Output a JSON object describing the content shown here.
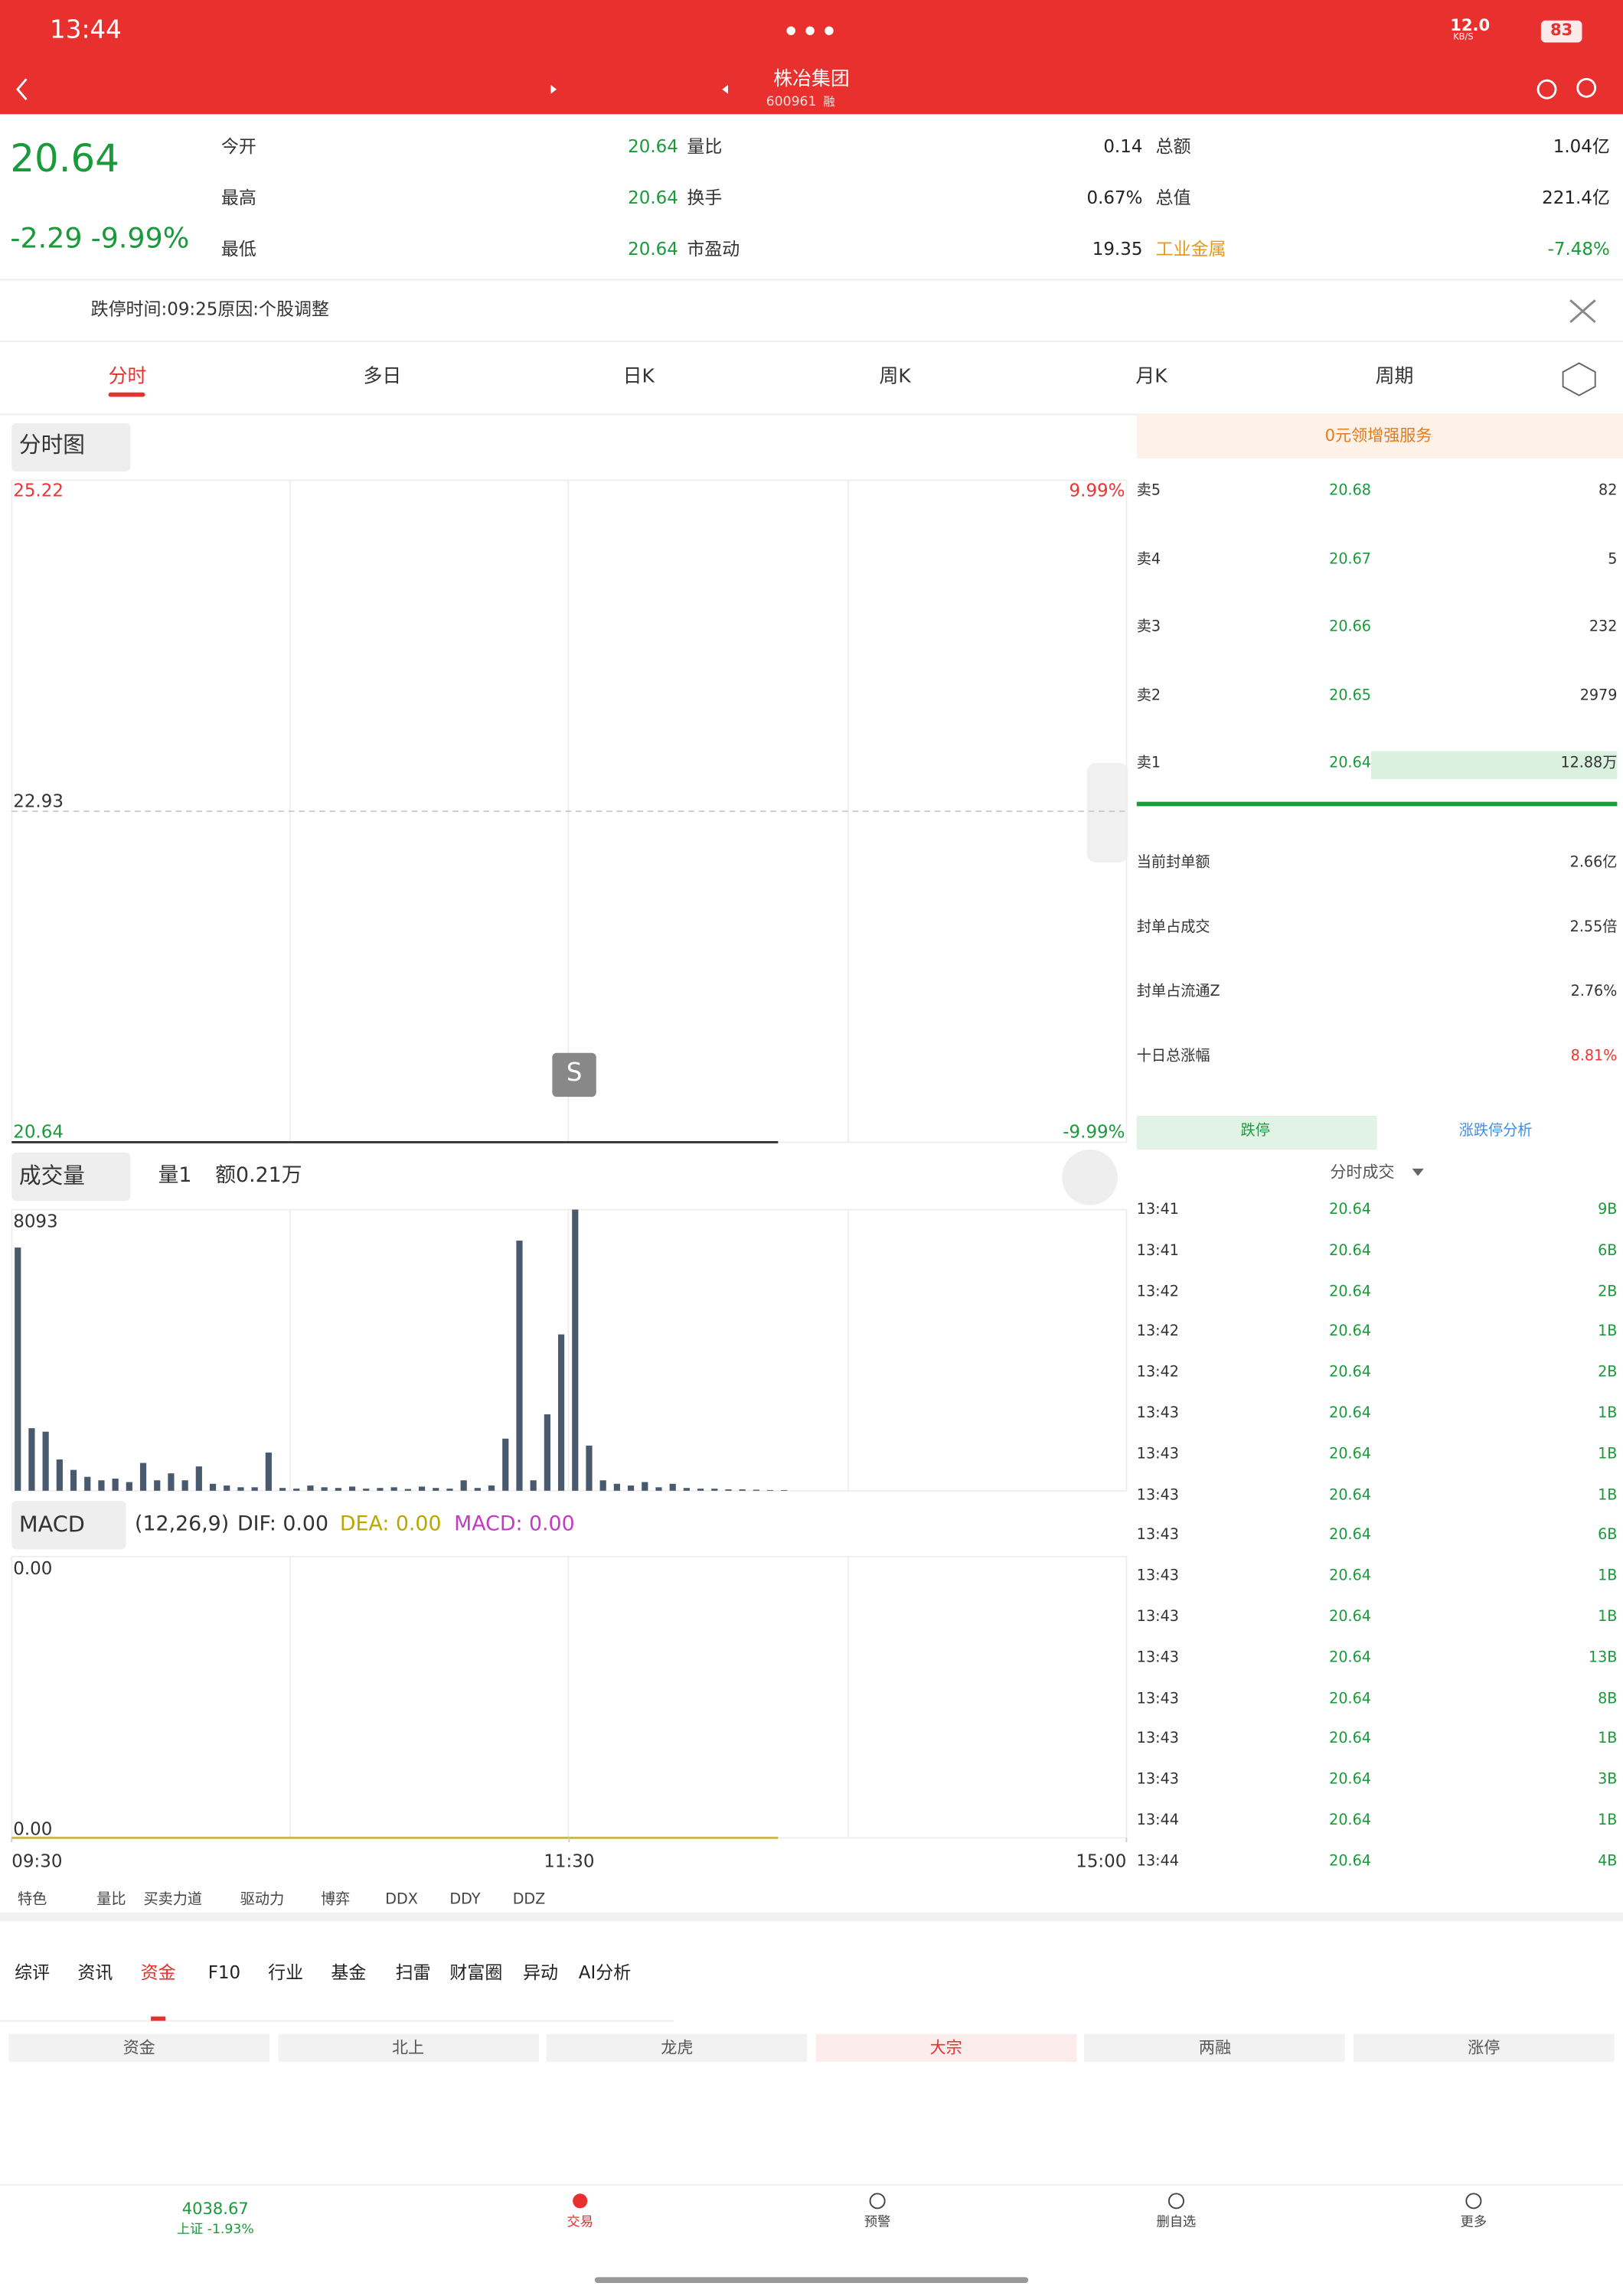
{
  "status_bar": {
    "time": "13:44",
    "speed": "12.0",
    "speed_unit": "KB/S",
    "battery": "83"
  },
  "header": {
    "title": "株冶集团",
    "code": "600961",
    "tag": "融"
  },
  "quote": {
    "price": "20.64",
    "change": "-2.29",
    "change_pct": "-9.99%",
    "rows": [
      [
        [
          "今开",
          "20.64"
        ],
        [
          "量比",
          "0.14"
        ],
        [
          "总额",
          "1.04亿"
        ]
      ],
      [
        [
          "最高",
          "20.64"
        ],
        [
          "换手",
          "0.67%"
        ],
        [
          "总值",
          "221.4亿"
        ]
      ],
      [
        [
          "最低",
          "20.64"
        ],
        [
          "市盈动",
          "19.35"
        ],
        [
          "工业金属",
          "-7.48%"
        ]
      ]
    ]
  },
  "notice": "跌停时间:09:25原因:个股调整",
  "tabs": [
    "分时",
    "多日",
    "日K",
    "周K",
    "月K",
    "周期"
  ],
  "chart_data": {
    "type": "line",
    "selector": "分时图",
    "marker": "S",
    "ylim": [
      20.64,
      25.22
    ],
    "yticks": [
      25.22,
      22.93,
      20.64
    ],
    "pct_labels": [
      "9.99%",
      "-9.99%"
    ],
    "xlim": [
      0,
      240
    ],
    "xticks": [
      {
        "value": 0,
        "label": "09:30"
      },
      {
        "value": 120,
        "label": "11:30"
      },
      {
        "value": 240,
        "label": "15:00"
      }
    ],
    "x": [
      0,
      3,
      6,
      9,
      12,
      15,
      18,
      21,
      24,
      27,
      30,
      33,
      36,
      39,
      42,
      45,
      48,
      51,
      54,
      57,
      60,
      63,
      66,
      69,
      72,
      75,
      78,
      81,
      84,
      87,
      90,
      93,
      96,
      99,
      102,
      105,
      108,
      111,
      114,
      117,
      120,
      123,
      126,
      129,
      132,
      135,
      138,
      141,
      144,
      147,
      150,
      153,
      156,
      159,
      162,
      165
    ],
    "price": [
      20.64,
      20.64,
      20.64,
      20.64,
      20.64,
      20.64,
      20.64,
      20.64,
      20.64,
      20.64,
      20.64,
      20.64,
      20.64,
      20.64,
      20.64,
      20.64,
      20.64,
      20.64,
      20.64,
      20.64,
      20.64,
      20.64,
      20.64,
      20.64,
      20.64,
      20.64,
      20.64,
      20.64,
      20.64,
      20.64,
      20.64,
      20.64,
      20.64,
      20.64,
      20.64,
      20.64,
      20.64,
      20.64,
      20.64,
      20.64,
      20.64,
      20.64,
      20.64,
      20.64,
      20.64,
      20.64,
      20.64,
      20.64,
      20.64,
      20.64,
      20.64,
      20.64,
      20.64,
      20.64,
      20.64,
      20.64
    ],
    "volume": {
      "title": "成交量",
      "qty": "量1",
      "amount": "额0.21万",
      "ylim": [
        0,
        8093
      ],
      "yticks": [
        8093
      ],
      "color": "#4a5a6e",
      "values": [
        7000,
        1800,
        1700,
        900,
        600,
        400,
        300,
        350,
        250,
        800,
        300,
        500,
        300,
        700,
        200,
        150,
        100,
        100,
        1100,
        80,
        60,
        150,
        100,
        80,
        120,
        60,
        80,
        100,
        50,
        120,
        80,
        60,
        300,
        80,
        150,
        1500,
        7200,
        300,
        2200,
        4500,
        8093,
        1300,
        300,
        200,
        150,
        250,
        100,
        200,
        80,
        60,
        60,
        40,
        40,
        30,
        20,
        20
      ]
    },
    "macd": {
      "title": "MACD",
      "params": "(12,26,9)",
      "dif": "DIF: 0.00",
      "dea": "DEA: 0.00",
      "macd": "MACD: 0.00",
      "ylim": [
        0,
        1
      ],
      "ytick_labels": [
        "0.00",
        "0.00"
      ],
      "color": "#c8b84a",
      "values": [
        0,
        0,
        0,
        0,
        0,
        0,
        0,
        0,
        0,
        0,
        0,
        0,
        0,
        0,
        0,
        0,
        0,
        0,
        0,
        0,
        0,
        0,
        0,
        0,
        0,
        0,
        0,
        0,
        0,
        0,
        0,
        0,
        0,
        0,
        0,
        0,
        0,
        0,
        0,
        0,
        0,
        0,
        0,
        0,
        0,
        0,
        0,
        0,
        0,
        0,
        0,
        0,
        0,
        0,
        0,
        0
      ]
    }
  },
  "side": {
    "banner": "0元领增强服务",
    "book": [
      [
        "卖5",
        "20.68",
        "82"
      ],
      [
        "卖4",
        "20.67",
        "5"
      ],
      [
        "卖3",
        "20.66",
        "232"
      ],
      [
        "卖2",
        "20.65",
        "2979"
      ],
      [
        "卖1",
        "20.64",
        "12.88万"
      ]
    ],
    "stats": [
      [
        "当前封单额",
        "2.66亿"
      ],
      [
        "封单占成交",
        "2.55倍"
      ],
      [
        "封单占流通Z",
        "2.76%"
      ],
      [
        "十日总涨幅",
        "8.81%"
      ]
    ],
    "tabs": [
      "跌停",
      "涨跌停分析"
    ],
    "trades_title": "分时成交",
    "trades": [
      [
        "13:41",
        "20.64",
        "9B"
      ],
      [
        "13:41",
        "20.64",
        "6B"
      ],
      [
        "13:42",
        "20.64",
        "2B"
      ],
      [
        "13:42",
        "20.64",
        "1B"
      ],
      [
        "13:42",
        "20.64",
        "2B"
      ],
      [
        "13:43",
        "20.64",
        "1B"
      ],
      [
        "13:43",
        "20.64",
        "1B"
      ],
      [
        "13:43",
        "20.64",
        "1B"
      ],
      [
        "13:43",
        "20.64",
        "6B"
      ],
      [
        "13:43",
        "20.64",
        "1B"
      ],
      [
        "13:43",
        "20.64",
        "1B"
      ],
      [
        "13:43",
        "20.64",
        "13B"
      ],
      [
        "13:43",
        "20.64",
        "8B"
      ],
      [
        "13:43",
        "20.64",
        "1B"
      ],
      [
        "13:43",
        "20.64",
        "3B"
      ],
      [
        "13:44",
        "20.64",
        "1B"
      ],
      [
        "13:44",
        "20.64",
        "4B"
      ]
    ]
  },
  "features": [
    "特色",
    "量比",
    "买卖力道",
    "驱动力",
    "博弈",
    "DDX",
    "DDY",
    "DDZ"
  ],
  "info_tabs": [
    "综评",
    "资讯",
    "资金",
    "F10",
    "行业",
    "基金",
    "扫雷",
    "财富圈",
    "异动",
    "AI分析"
  ],
  "sub_tabs": [
    "资金",
    "北上",
    "龙虎",
    "大宗",
    "两融",
    "涨停"
  ],
  "nav": {
    "index_value": "4038.67",
    "index_change": "上证 -1.93%",
    "items": [
      "交易",
      "预警",
      "删自选",
      "更多"
    ]
  }
}
